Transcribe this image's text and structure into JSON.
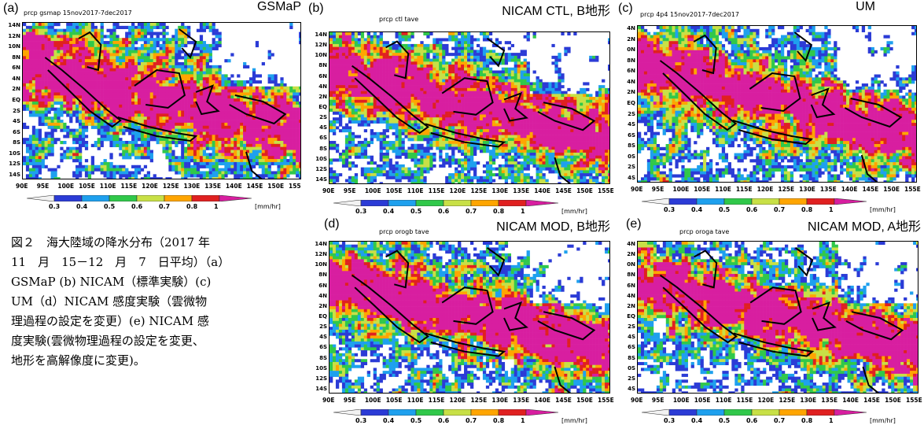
{
  "colors": {
    "scale": [
      "#f2f2f2",
      "#2b3bd6",
      "#1ea0ee",
      "#30c84a",
      "#c8e046",
      "#ffa500",
      "#e02020",
      "#d81ea0"
    ],
    "map_outline": "#000000",
    "missing": "#ffffff"
  },
  "caption": {
    "lines": [
      "図２　海大陸域の降水分布（2017 年",
      "11　月　15－12　月　7　日平均）（a）",
      "GSMaP (b) NICAM（標準実験）(c)",
      "UM（d）NICAM 感度実験（雲微物",
      "理過程の設定を変更）(e) NICAM 感",
      "度実験(雲微物理過程の設定を変更、",
      "地形を高解像度に変更)。"
    ]
  },
  "chart_data": [
    {
      "type": "heatmap",
      "letter": "(a)",
      "subtitle": "prcp gsmap 15nov2017-7dec2017",
      "title": "GSMaP",
      "x_ticks": [
        "90E",
        "95E",
        "100E",
        "105E",
        "110E",
        "115E",
        "120E",
        "125E",
        "130E",
        "135E",
        "140E",
        "145E",
        "150E",
        "155"
      ],
      "y_ticks": [
        "14N",
        "12N",
        "10N",
        "8N",
        "6N",
        "4N",
        "2N",
        "EQ",
        "2S",
        "4S",
        "6S",
        "8S",
        "10S",
        "12S",
        "14S"
      ],
      "colorbar": {
        "levels": [
          "0.3",
          "0.4",
          "0.5",
          "0.6",
          "0.7",
          "0.8",
          "1"
        ],
        "unit": "[mm/hr]"
      },
      "field_seed": 11
    },
    {
      "type": "heatmap",
      "letter": "(b)",
      "subtitle": "prcp ctl tave",
      "title": "NICAM CTL, B地形",
      "x_ticks": [
        "90E",
        "95E",
        "100E",
        "105E",
        "110E",
        "115E",
        "120E",
        "125E",
        "130E",
        "135E",
        "140E",
        "145E",
        "150E",
        "155E"
      ],
      "y_ticks": [
        "14N",
        "12N",
        "10N",
        "8N",
        "6N",
        "4N",
        "2N",
        "EQ",
        "2S",
        "4S",
        "6S",
        "8S",
        "10S",
        "12S",
        "14S"
      ],
      "colorbar": {
        "levels": [
          "0.3",
          "0.4",
          "0.5",
          "0.6",
          "0.7",
          "0.8",
          "1"
        ],
        "unit": "[mm/hr]"
      },
      "field_seed": 23
    },
    {
      "type": "heatmap",
      "letter": "(c)",
      "subtitle": "prcp 4p4 15nov2017-7dec2017",
      "title": "UM",
      "x_ticks": [
        "90E",
        "95E",
        "100E",
        "105E",
        "110E",
        "115E",
        "120E",
        "125E",
        "130E",
        "135E",
        "140E",
        "145E",
        "150E",
        "155E"
      ],
      "y_ticks": [
        "4N",
        "2N",
        "0N",
        "8N",
        "6N",
        "4N",
        "2N",
        "EQ",
        "2S",
        "4S",
        "6S",
        "8S",
        "0S",
        "2S",
        "4S"
      ],
      "colorbar": {
        "levels": [
          "0.3",
          "0.4",
          "0.5",
          "0.6",
          "0.7",
          "0.8",
          "1"
        ],
        "unit": "[mm/hr]"
      },
      "field_seed": 37
    },
    {
      "type": "heatmap",
      "letter": "(d)",
      "subtitle": "prcp orogb tave",
      "title": "NICAM MOD, B地形",
      "x_ticks": [
        "90E",
        "95E",
        "100E",
        "105E",
        "110E",
        "115E",
        "120E",
        "125E",
        "130E",
        "135E",
        "140E",
        "145E",
        "150E",
        "155E"
      ],
      "y_ticks": [
        "14N",
        "12N",
        "10N",
        "8N",
        "6N",
        "4N",
        "2N",
        "EQ",
        "2S",
        "4S",
        "6S",
        "8S",
        "10S",
        "12S",
        "14S"
      ],
      "colorbar": {
        "levels": [
          "0.3",
          "0.4",
          "0.5",
          "0.6",
          "0.7",
          "0.8",
          "1"
        ],
        "unit": "[mm/hr]"
      },
      "field_seed": 51
    },
    {
      "type": "heatmap",
      "letter": "(e)",
      "subtitle": "prcp oroga tave",
      "title": "NICAM MOD, A地形",
      "x_ticks": [
        "90E",
        "95E",
        "100E",
        "105E",
        "110E",
        "115E",
        "120E",
        "125E",
        "130E",
        "135E",
        "140E",
        "145E",
        "150E",
        "155E"
      ],
      "y_ticks": [
        "4N",
        "2N",
        "0N",
        "8N",
        "6N",
        "4N",
        "2N",
        "EQ",
        "2S",
        "4S",
        "6S",
        "8S",
        "0S",
        "2S",
        "4S"
      ],
      "colorbar": {
        "levels": [
          "0.3",
          "0.4",
          "0.5",
          "0.6",
          "0.7",
          "0.8",
          "1"
        ],
        "unit": "[mm/hr]"
      },
      "field_seed": 67
    }
  ]
}
